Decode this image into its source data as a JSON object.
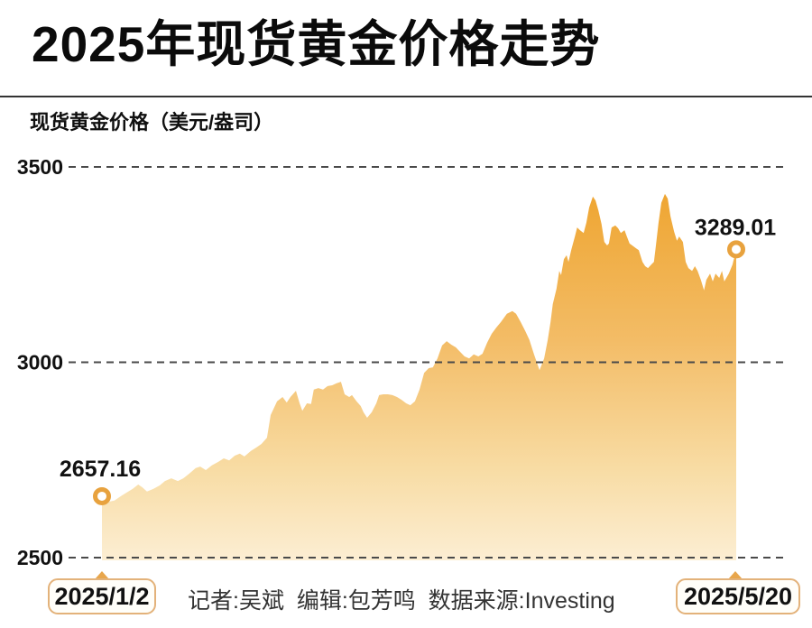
{
  "header": {
    "title": "2025年现货黄金价格走势"
  },
  "chart": {
    "unit_label": "现货黄金价格（美元/盎司）"
  },
  "footer": {
    "credits": "记者:吴斌  编辑:包芳鸣  数据来源:Investing",
    "start_date": "2025/1/2",
    "end_date": "2025/5/20"
  },
  "colors": {
    "accent_orange": "#E8A23E",
    "area_gradient_top": "#EEA32C",
    "area_gradient_mid1": "#F3BC66",
    "area_gradient_mid2": "#F8DCA4",
    "area_gradient_bottom": "#FCEFD6",
    "grid": "#4A4A4A",
    "ring": "#E8A23E",
    "text_dark": "#111111",
    "pointer_triangle": "#E8A64C",
    "box_border": "#E3B27A"
  },
  "chart_data": {
    "type": "area",
    "title": "2025年现货黄金价格走势",
    "ylabel": "现货黄金价格（美元/盎司）",
    "ylim": [
      2500,
      3500
    ],
    "yticks": [
      3500,
      3000,
      2500
    ],
    "grid": "horizontal-dashed",
    "legend": "none",
    "x_unit": "days since 2025-01-02",
    "x_range": [
      0,
      138
    ],
    "x_start_label": "2025/1/2",
    "x_end_label": "2025/5/20",
    "start_value": 2657.16,
    "end_value": 3289.01,
    "start_annotation": "2657.16",
    "end_annotation": "3289.01",
    "points": [
      [
        0,
        2657.16
      ],
      [
        1.4,
        2643
      ],
      [
        2.7,
        2646
      ],
      [
        4.3,
        2659
      ],
      [
        6.7,
        2676
      ],
      [
        7.9,
        2687
      ],
      [
        8.8,
        2680
      ],
      [
        9.8,
        2669
      ],
      [
        11.2,
        2676
      ],
      [
        12.6,
        2685
      ],
      [
        13.7,
        2696
      ],
      [
        15.1,
        2703
      ],
      [
        16.5,
        2696
      ],
      [
        17.7,
        2703
      ],
      [
        19,
        2715
      ],
      [
        20.4,
        2729
      ],
      [
        21.4,
        2733
      ],
      [
        22.6,
        2724
      ],
      [
        23.9,
        2736
      ],
      [
        25.3,
        2745
      ],
      [
        26.5,
        2754
      ],
      [
        27.7,
        2749
      ],
      [
        28.9,
        2761
      ],
      [
        30,
        2766
      ],
      [
        31,
        2759
      ],
      [
        32.4,
        2773
      ],
      [
        33.6,
        2782
      ],
      [
        34.7,
        2791
      ],
      [
        35.9,
        2807
      ],
      [
        36.7,
        2865
      ],
      [
        38.1,
        2900
      ],
      [
        39.3,
        2911
      ],
      [
        40.2,
        2897
      ],
      [
        41,
        2911
      ],
      [
        42.2,
        2927
      ],
      [
        43,
        2895
      ],
      [
        43.6,
        2876
      ],
      [
        44.6,
        2895
      ],
      [
        45.5,
        2893
      ],
      [
        46.1,
        2930
      ],
      [
        47.1,
        2934
      ],
      [
        48.1,
        2930
      ],
      [
        49.1,
        2939
      ],
      [
        50.1,
        2941
      ],
      [
        51,
        2946
      ],
      [
        52,
        2950
      ],
      [
        52.8,
        2918
      ],
      [
        53.8,
        2911
      ],
      [
        54.4,
        2916
      ],
      [
        55.4,
        2900
      ],
      [
        56.3,
        2888
      ],
      [
        56.9,
        2872
      ],
      [
        57.7,
        2858
      ],
      [
        58.7,
        2872
      ],
      [
        59.7,
        2895
      ],
      [
        60.3,
        2916
      ],
      [
        61.2,
        2918
      ],
      [
        62.2,
        2918
      ],
      [
        63.2,
        2916
      ],
      [
        64.2,
        2911
      ],
      [
        65.2,
        2904
      ],
      [
        66.2,
        2895
      ],
      [
        67.1,
        2890
      ],
      [
        68.1,
        2900
      ],
      [
        69.1,
        2930
      ],
      [
        70.1,
        2973
      ],
      [
        71.1,
        2985
      ],
      [
        72,
        2987
      ],
      [
        73,
        3010
      ],
      [
        74,
        3043
      ],
      [
        75,
        3054
      ],
      [
        76,
        3045
      ],
      [
        77,
        3038
      ],
      [
        77.9,
        3027
      ],
      [
        78.9,
        3015
      ],
      [
        79.9,
        3010
      ],
      [
        80.9,
        3020
      ],
      [
        81.9,
        3015
      ],
      [
        82.8,
        3022
      ],
      [
        83.8,
        3050
      ],
      [
        84.8,
        3073
      ],
      [
        85.8,
        3089
      ],
      [
        86.8,
        3103
      ],
      [
        88.1,
        3124
      ],
      [
        89.3,
        3131
      ],
      [
        90.1,
        3124
      ],
      [
        91.1,
        3103
      ],
      [
        92.1,
        3080
      ],
      [
        93,
        3057
      ],
      [
        94,
        3020
      ],
      [
        95.2,
        2980
      ],
      [
        96.2,
        3010
      ],
      [
        97,
        3057
      ],
      [
        97.6,
        3103
      ],
      [
        98.1,
        3149
      ],
      [
        98.9,
        3188
      ],
      [
        99.5,
        3234
      ],
      [
        99.9,
        3223
      ],
      [
        100.5,
        3264
      ],
      [
        101.1,
        3274
      ],
      [
        101.5,
        3257
      ],
      [
        102.1,
        3287
      ],
      [
        102.9,
        3322
      ],
      [
        103.4,
        3345
      ],
      [
        104,
        3338
      ],
      [
        104.8,
        3331
      ],
      [
        105.4,
        3357
      ],
      [
        106,
        3396
      ],
      [
        106.8,
        3424
      ],
      [
        107.4,
        3414
      ],
      [
        108,
        3389
      ],
      [
        108.7,
        3354
      ],
      [
        109.3,
        3308
      ],
      [
        109.9,
        3299
      ],
      [
        110.3,
        3304
      ],
      [
        110.9,
        3345
      ],
      [
        111.7,
        3350
      ],
      [
        112.3,
        3343
      ],
      [
        112.9,
        3331
      ],
      [
        113.7,
        3338
      ],
      [
        114.2,
        3322
      ],
      [
        114.8,
        3304
      ],
      [
        115.6,
        3297
      ],
      [
        116.2,
        3292
      ],
      [
        116.8,
        3287
      ],
      [
        117.6,
        3257
      ],
      [
        118.2,
        3246
      ],
      [
        118.8,
        3241
      ],
      [
        119.6,
        3251
      ],
      [
        120.1,
        3257
      ],
      [
        120.5,
        3297
      ],
      [
        121.1,
        3357
      ],
      [
        121.7,
        3408
      ],
      [
        122.5,
        3431
      ],
      [
        123.1,
        3419
      ],
      [
        123.7,
        3373
      ],
      [
        124.5,
        3334
      ],
      [
        125.1,
        3311
      ],
      [
        125.6,
        3322
      ],
      [
        126.4,
        3308
      ],
      [
        127,
        3257
      ],
      [
        127.6,
        3241
      ],
      [
        128.4,
        3234
      ],
      [
        129,
        3246
      ],
      [
        129.6,
        3234
      ],
      [
        130.3,
        3211
      ],
      [
        131,
        3184
      ],
      [
        131.5,
        3211
      ],
      [
        132.3,
        3227
      ],
      [
        132.9,
        3207
      ],
      [
        133.5,
        3227
      ],
      [
        134.3,
        3216
      ],
      [
        134.9,
        3234
      ],
      [
        135.4,
        3207
      ],
      [
        136.4,
        3227
      ],
      [
        137.2,
        3250
      ],
      [
        138,
        3289.01
      ]
    ]
  }
}
